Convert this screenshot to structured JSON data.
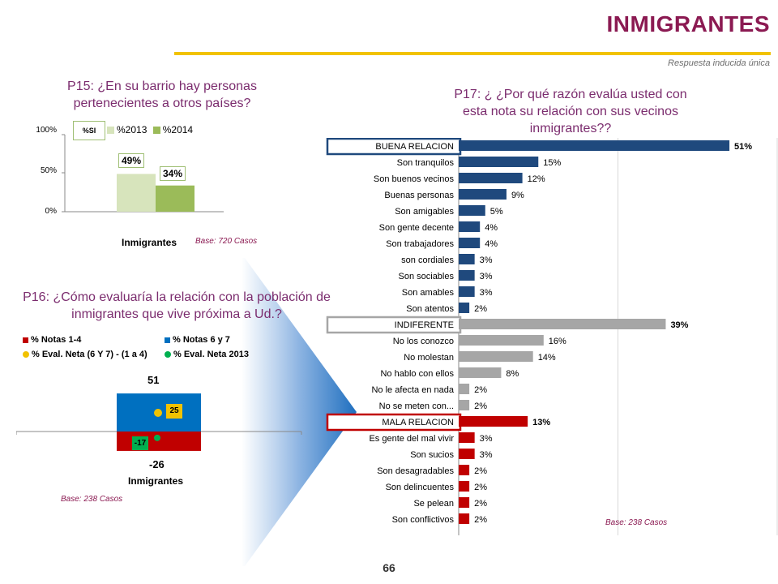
{
  "header": {
    "title": "INMIGRANTES",
    "subtitle": "Respuesta inducida única"
  },
  "colors": {
    "title": "#8B1A52",
    "accent_line": "#F1C200",
    "question": "#7B2C6E",
    "good_bar": "#1F497D",
    "neutral_bar": "#A6A6A6",
    "bad_bar": "#C00000",
    "p15_2013": "#D7E4BC",
    "p15_2014": "#9BBB59",
    "p16_notas14": "#C00000",
    "p16_notas67": "#0070C0",
    "p16_eval_neta": "#F1C200",
    "p16_eval_neta_2013": "#00B050"
  },
  "p15": {
    "question": "P15: ¿En su barrio hay personas pertenecientes a otros países?",
    "base": "Base: 720 Casos",
    "badge": "%SI",
    "chart_data": {
      "type": "bar",
      "categories": [
        "Inmigrantes"
      ],
      "series": [
        {
          "name": "%2013",
          "values": [
            49
          ]
        },
        {
          "name": "%2014",
          "values": [
            34
          ]
        }
      ],
      "value_labels": [
        "49%",
        "34%"
      ],
      "y_ticks": [
        "100%",
        "50%",
        "0%"
      ],
      "ylim": [
        0,
        100
      ],
      "xlabel": "Inmigrantes",
      "legend": "top"
    }
  },
  "p16": {
    "question": "P16: ¿Cómo evaluaría la relación con la población de inmigrantes que vive próxima a Ud.?",
    "base": "Base: 238 Casos",
    "legend": [
      "% Notas 1-4",
      "% Notas 6 y 7",
      "% Eval. Neta (6 Y 7) - (1 a 4)",
      "% Eval. Neta 2013"
    ],
    "chart_data": {
      "type": "bar",
      "categories": [
        "Inmigrantes"
      ],
      "series": [
        {
          "name": "% Notas 1-4",
          "values": [
            -26
          ]
        },
        {
          "name": "% Notas 6 y 7",
          "values": [
            51
          ]
        },
        {
          "name": "% Eval. Neta (6 Y 7) - (1 a 4)",
          "values": [
            25
          ]
        },
        {
          "name": "% Eval. Neta 2013",
          "values": [
            -17
          ]
        }
      ],
      "labels": {
        "top": "51",
        "bottom": "-26",
        "neta": "25",
        "neta_2013": "-17"
      },
      "xlabel": "Inmigrantes"
    }
  },
  "p17": {
    "question": "P17: ¿ ¿Por qué razón evalúa usted con esta nota su relación con sus vecinos inmigrantes??",
    "base": "Base: 238 Casos",
    "chart_data": {
      "type": "bar",
      "orientation": "horizontal",
      "xlim": [
        0,
        60
      ],
      "categories": [
        "BUENA RELACION",
        "Son tranquilos",
        "Son buenos vecinos",
        "Buenas personas",
        "Son amigables",
        "Son gente decente",
        "Son trabajadores",
        "son cordiales",
        "Son sociables",
        "Son amables",
        "Son atentos",
        "INDIFERENTE",
        "No los conozco",
        "No molestan",
        "No hablo con ellos",
        "No le afecta en nada",
        "No se meten con...",
        "MALA RELACION",
        "Es gente del mal vivir",
        "Son sucios",
        "Son desagradables",
        "Son delincuentes",
        "Se pelean",
        "Son conflictivos"
      ],
      "values": [
        51,
        15,
        12,
        9,
        5,
        4,
        4,
        3,
        3,
        3,
        2,
        39,
        16,
        14,
        8,
        2,
        2,
        13,
        3,
        3,
        2,
        2,
        2,
        2
      ],
      "value_labels": [
        "51%",
        "15%",
        "12%",
        "9%",
        "5%",
        "4%",
        "4%",
        "3%",
        "3%",
        "3%",
        "2%",
        "39%",
        "16%",
        "14%",
        "8%",
        "2%",
        "2%",
        "13%",
        "3%",
        "3%",
        "2%",
        "2%",
        "2%",
        "2%"
      ],
      "groups": [
        "good",
        "good",
        "good",
        "good",
        "good",
        "good",
        "good",
        "good",
        "good",
        "good",
        "good",
        "neutral",
        "neutral",
        "neutral",
        "neutral",
        "neutral",
        "neutral",
        "bad",
        "bad",
        "bad",
        "bad",
        "bad",
        "bad",
        "bad"
      ],
      "headers": [
        "BUENA RELACION",
        "INDIFERENTE",
        "MALA RELACION"
      ]
    }
  },
  "footer": {
    "page_number": "66"
  }
}
